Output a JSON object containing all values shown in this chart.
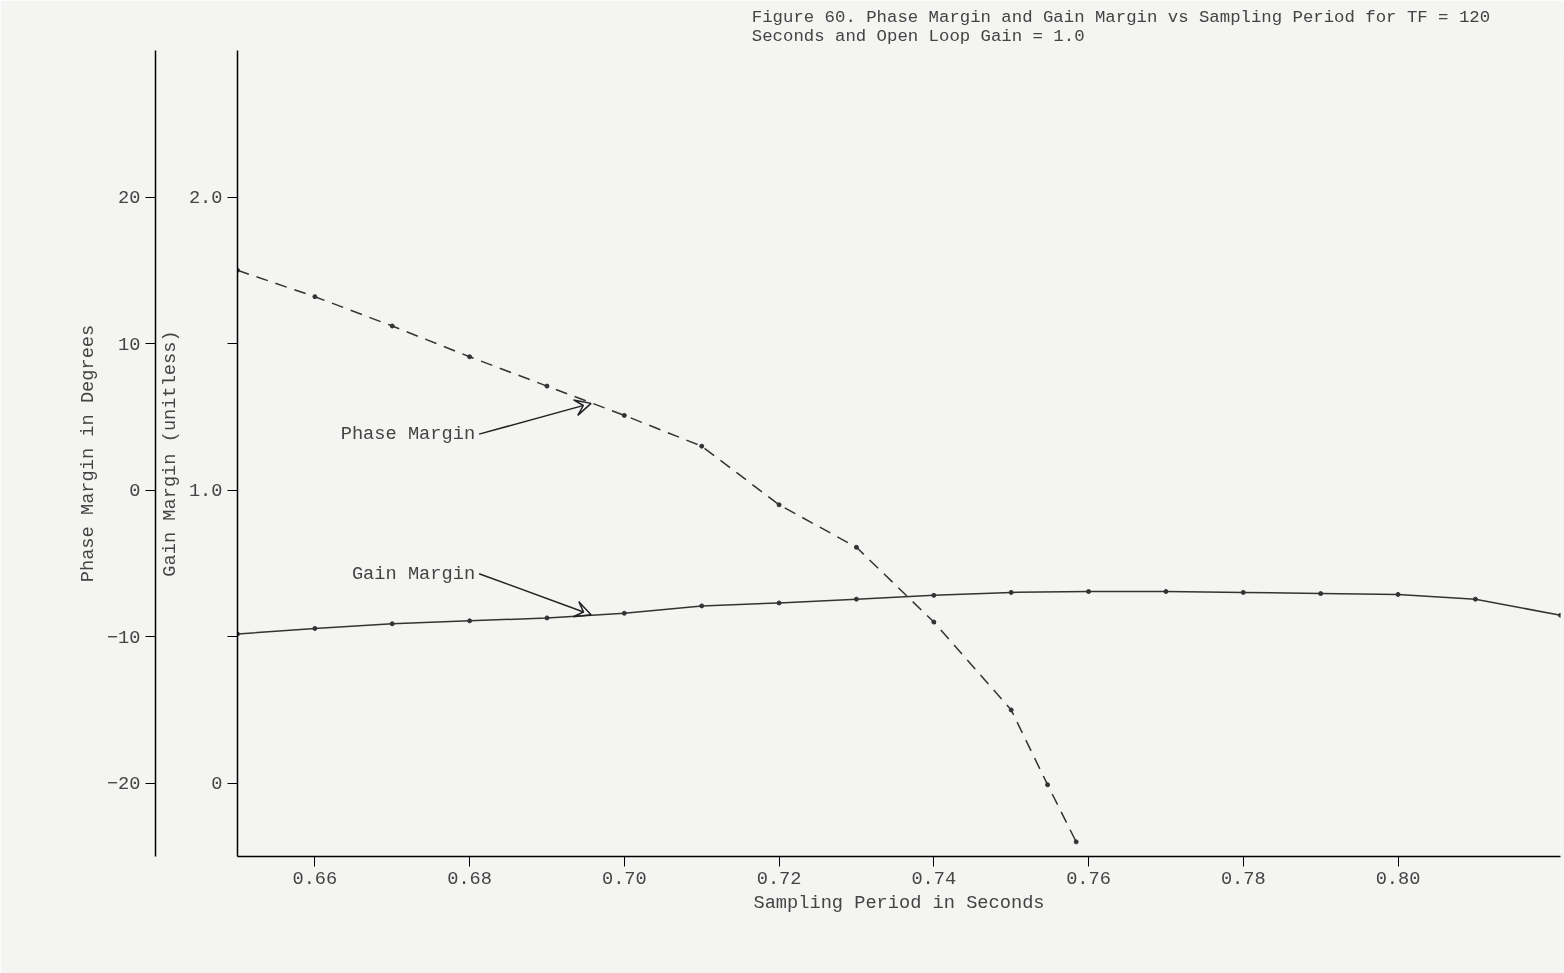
{
  "chart_data": {
    "type": "line",
    "title": "Figure 60.  Phase Margin and Gain Margin vs Sampling Period for TF = 120\n           Seconds and Open Loop Gain = 1.0",
    "xlabel": "Sampling Period in Seconds",
    "ylabel": "Gain Margin (unitless)",
    "y2label": "Phase Margin in Degrees",
    "xlim": [
      0.65,
      0.821
    ],
    "xticks": [
      0.66,
      0.68,
      {
        "value": 0.7,
        "label": "0.70"
      },
      0.72,
      0.74,
      0.76,
      0.78,
      {
        "value": 0.8,
        "label": "0.80"
      }
    ],
    "ylim": [
      -0.25,
      2.5
    ],
    "yticks": [
      0,
      {
        "value": 0.5,
        "label": null
      },
      {
        "value": 1.0,
        "label": "1.0"
      },
      {
        "value": 1.5,
        "label": null
      },
      {
        "value": 2.0,
        "label": "2.0"
      }
    ],
    "y2lim": [
      -25,
      30
    ],
    "y2ticks": [
      -20,
      -10,
      0,
      10,
      20
    ],
    "grid": false,
    "marker": "circle",
    "series": [
      {
        "color": "#333333",
        "line_style": "dashed",
        "axis": "y2",
        "x": [
          0.65,
          0.66,
          0.67,
          0.68,
          0.69,
          0.7,
          0.71,
          0.72,
          0.73,
          0.74,
          0.75,
          0.7547,
          0.7584
        ],
        "values": [
          15.0,
          13.2,
          11.2,
          9.1,
          7.1,
          5.1,
          3.0,
          -1.0,
          -3.9,
          -9.0,
          -15.0,
          -20.1,
          -24.0
        ]
      },
      {
        "color": "#333333",
        "line_style": "solid",
        "x": [
          0.65,
          0.66,
          0.67,
          0.68,
          0.69,
          0.7,
          0.71,
          0.72,
          0.73,
          0.74,
          0.75,
          0.76,
          0.77,
          0.78,
          0.79,
          0.8,
          0.81,
          0.821
        ],
        "values": [
          0.509,
          0.528,
          0.544,
          0.554,
          0.564,
          0.58,
          0.605,
          0.615,
          0.628,
          0.641,
          0.651,
          0.654,
          0.654,
          0.651,
          0.647,
          0.644,
          0.628,
          0.573
        ]
      }
    ],
    "annotations": [
      {
        "text": "Phase Margin",
        "x": 0.6957,
        "y": 1.296
      },
      {
        "text": "Gain Margin",
        "x": 0.6957,
        "y": 0.575
      }
    ]
  }
}
